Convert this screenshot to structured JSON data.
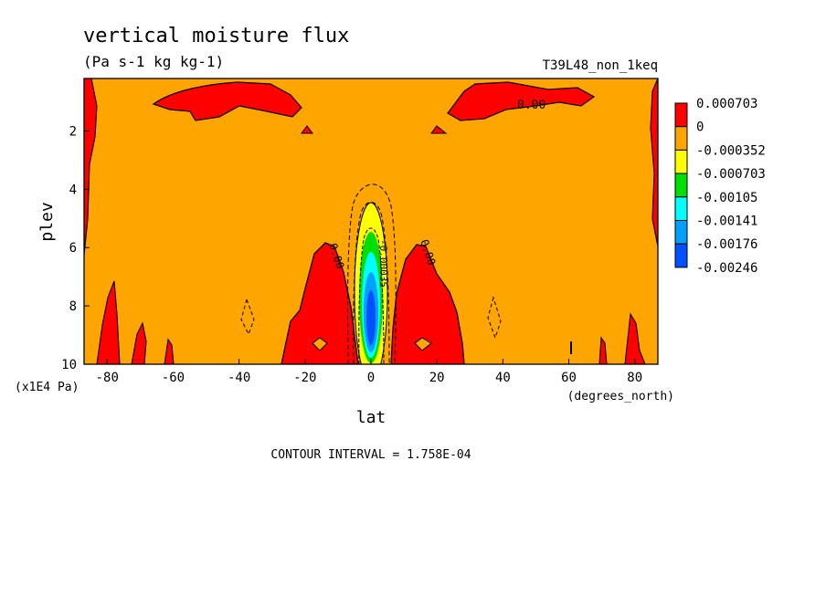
{
  "chart_data": {
    "type": "contour",
    "title": "vertical moisture flux",
    "units": "(Pa s-1 kg kg-1)",
    "run_label": "T39L48_non_1keq",
    "xlabel": "lat",
    "x_units": "(degrees_north)",
    "ylabel": "plev",
    "y_units": "(x1E4 Pa)",
    "xlim": [
      -87,
      87
    ],
    "ylim": [
      10,
      0.2
    ],
    "x_ticks": [
      -80,
      -60,
      -40,
      -20,
      0,
      20,
      40,
      60,
      80
    ],
    "y_ticks": [
      2,
      4,
      6,
      8,
      10
    ],
    "contour_interval_text": "CONTOUR INTERVAL = 1.758E-04",
    "contour_labels": [
      "0.00",
      "0.00",
      "0.00",
      "-0.00035"
    ],
    "colorbar": {
      "labels": [
        "0.000703",
        "0",
        "-0.000352",
        "-0.000703",
        "-0.00105",
        "-0.00141",
        "-0.00176",
        "-0.00246"
      ],
      "colors": [
        "#ff0000",
        "#ffa500",
        "#ffff00",
        "#00e000",
        "#00ffff",
        "#00a0ff",
        "#0050ff"
      ]
    }
  }
}
